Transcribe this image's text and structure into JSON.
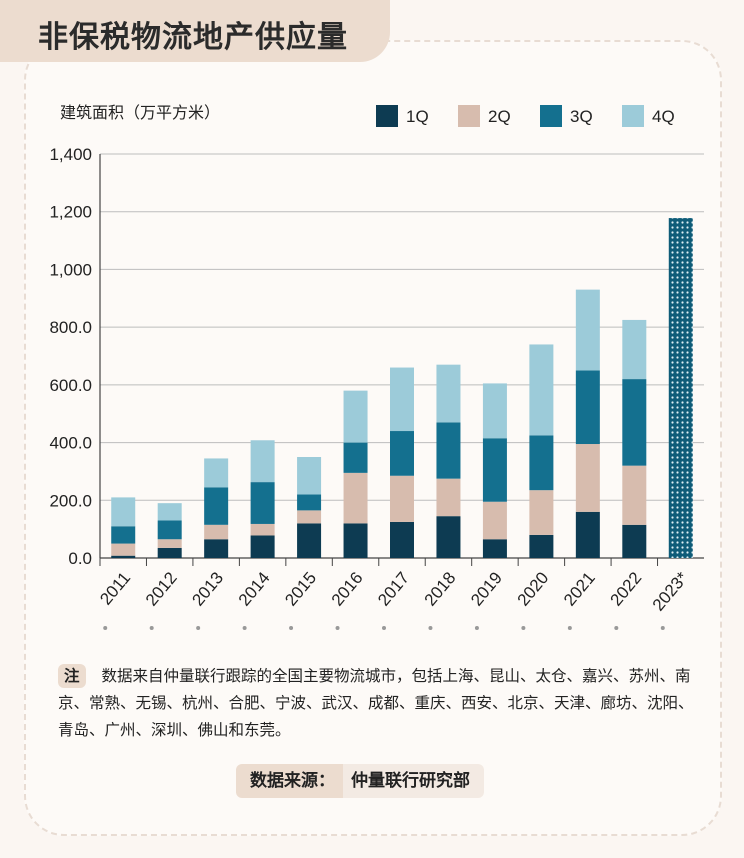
{
  "header": {
    "title": "非保税物流地产供应量"
  },
  "chart_data": {
    "type": "bar",
    "stacked": true,
    "title": "非保税物流地产供应量",
    "ylabel": "建筑面积（万平方米）",
    "xlabel": "",
    "ylim": [
      0,
      1400
    ],
    "yticks": [
      "0.0",
      "200.0",
      "400.0",
      "600.0",
      "800.0",
      "1,000",
      "1,200",
      "1,400"
    ],
    "ytick_values": [
      0,
      200,
      400,
      600,
      800,
      1000,
      1200,
      1400
    ],
    "categories": [
      "2011",
      "2012",
      "2013",
      "2014",
      "2015",
      "2016",
      "2017",
      "2018",
      "2019",
      "2020",
      "2021",
      "2022",
      "2023*"
    ],
    "grid": true,
    "legend_position": "top-right",
    "series": [
      {
        "name": "1Q",
        "color": "#0d3b52",
        "values": [
          8,
          35,
          65,
          78,
          120,
          120,
          125,
          145,
          65,
          80,
          160,
          115,
          null
        ]
      },
      {
        "name": "2Q",
        "color": "#d7bcae",
        "values": [
          42,
          30,
          50,
          40,
          45,
          175,
          160,
          130,
          130,
          155,
          235,
          205,
          null
        ]
      },
      {
        "name": "3Q",
        "color": "#14708f",
        "values": [
          60,
          65,
          130,
          145,
          55,
          105,
          155,
          195,
          220,
          190,
          255,
          300,
          null
        ]
      },
      {
        "name": "4Q",
        "color": "#9ccbd9",
        "values": [
          100,
          60,
          100,
          145,
          130,
          180,
          220,
          200,
          190,
          315,
          280,
          205,
          null
        ]
      }
    ],
    "forecast": {
      "category": "2023*",
      "total": 1178,
      "color": "#14708f",
      "pattern": "dotted"
    }
  },
  "note": {
    "badge": "注",
    "text": "数据来自仲量联行跟踪的全国主要物流城市，包括上海、昆山、太仓、嘉兴、苏州、南京、常熟、无锡、杭州、合肥、宁波、武汉、成都、重庆、西安、北京、天津、廊坊、沈阳、青岛、广州、深圳、佛山和东莞。"
  },
  "source": {
    "label": "数据来源：",
    "value": "仲量联行研究部"
  }
}
